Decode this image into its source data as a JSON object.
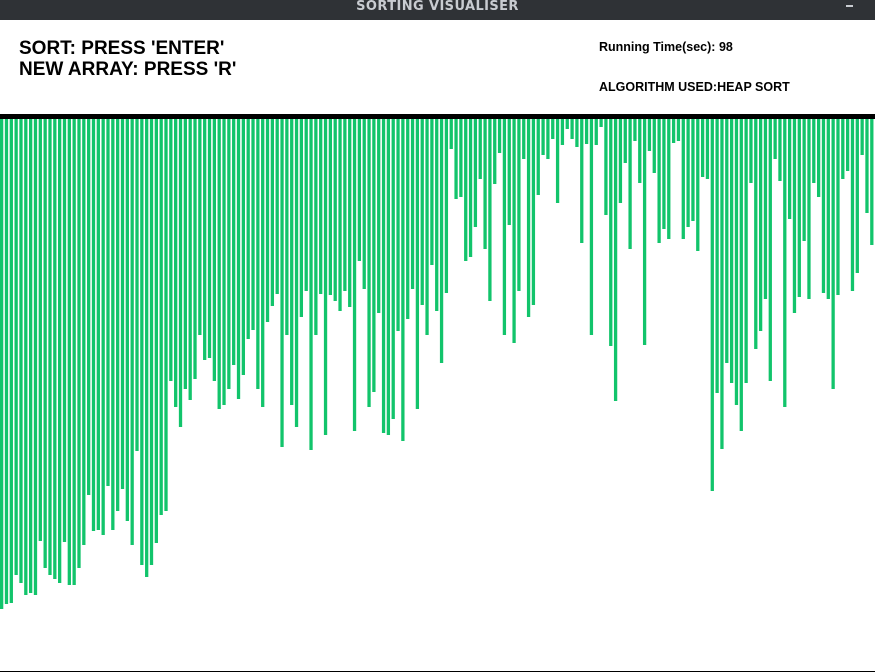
{
  "window": {
    "title": "SORTING VISUALISER",
    "minimize_glyph": "–"
  },
  "instructions": {
    "sort": "SORT: PRESS 'ENTER'",
    "new_array": "NEW ARRAY: PRESS 'R'"
  },
  "info": {
    "running_time_label": "Running Time(sec):",
    "running_time_value": "98",
    "algorithm_label": "ALGORITHM USED:",
    "algorithm_value": "HEAP SORT"
  },
  "colors": {
    "bar": "#12c46b",
    "divider": "#000000",
    "titlebar": "#2f3236"
  },
  "chart_data": {
    "type": "bar",
    "bar_heights": [
      490,
      485,
      484,
      456,
      464,
      476,
      474,
      476,
      422,
      449,
      456,
      460,
      464,
      423,
      466,
      466,
      449,
      426,
      376,
      412,
      411,
      416,
      367,
      411,
      392,
      370,
      402,
      426,
      332,
      446,
      458,
      446,
      424,
      396,
      392,
      262,
      288,
      308,
      270,
      281,
      260,
      216,
      241,
      239,
      262,
      290,
      286,
      270,
      246,
      280,
      256,
      220,
      211,
      270,
      288,
      203,
      187,
      175,
      328,
      216,
      286,
      308,
      198,
      172,
      331,
      216,
      175,
      316,
      176,
      182,
      192,
      172,
      188,
      312,
      142,
      170,
      288,
      273,
      194,
      314,
      316,
      300,
      212,
      322,
      200,
      170,
      290,
      186,
      216,
      146,
      192,
      244,
      174,
      30,
      80,
      78,
      142,
      138,
      108,
      60,
      130,
      182,
      65,
      34,
      216,
      106,
      224,
      172,
      40,
      198,
      186,
      76,
      36,
      40,
      20,
      84,
      26,
      10,
      20,
      28,
      124,
      25,
      216,
      26,
      8,
      96,
      227,
      282,
      84,
      44,
      130,
      22,
      64,
      226,
      32,
      54,
      124,
      110,
      120,
      24,
      22,
      120,
      108,
      102,
      132,
      58,
      60,
      372,
      274,
      330,
      244,
      264,
      286,
      312,
      264,
      64,
      230,
      212,
      180,
      262,
      40,
      62,
      288,
      100,
      194,
      178,
      122,
      180,
      64,
      78,
      174,
      180,
      270,
      176,
      60,
      52,
      172,
      154,
      36,
      94,
      126
    ],
    "x_range": [
      0,
      180
    ]
  }
}
